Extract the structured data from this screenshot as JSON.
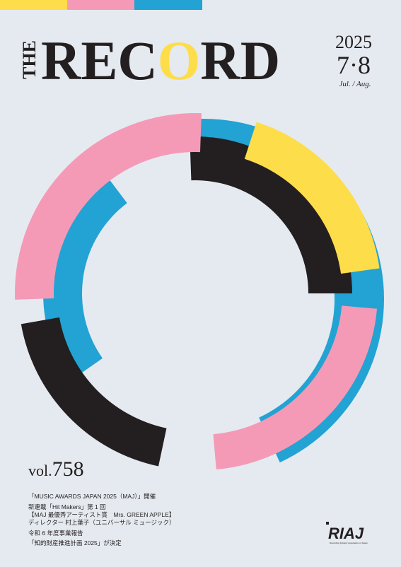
{
  "masthead": {
    "the": "THE",
    "record_parts": [
      "REC",
      "O",
      "RD"
    ]
  },
  "issue": {
    "year": "2025",
    "months": "7·8",
    "months_en": "Jul. / Aug."
  },
  "volume": {
    "prefix": "vol.",
    "number": "758"
  },
  "contents": [
    "「MUSIC AWARDS JAPAN 2025（MAJ）」開催",
    "新連載「Hit Makers」第 1 回",
    "【MAJ 最優秀アーティスト賞　Mrs. GREEN APPLE】",
    "ディレクター 村上葉子（ユニバーサル ミュージック）",
    "令和 6 年度事業報告",
    "「知的財産推進計画 2025」が決定"
  ],
  "logo": {
    "mark": "RIAJ",
    "caption": "Recording Industry Association of Japan"
  }
}
